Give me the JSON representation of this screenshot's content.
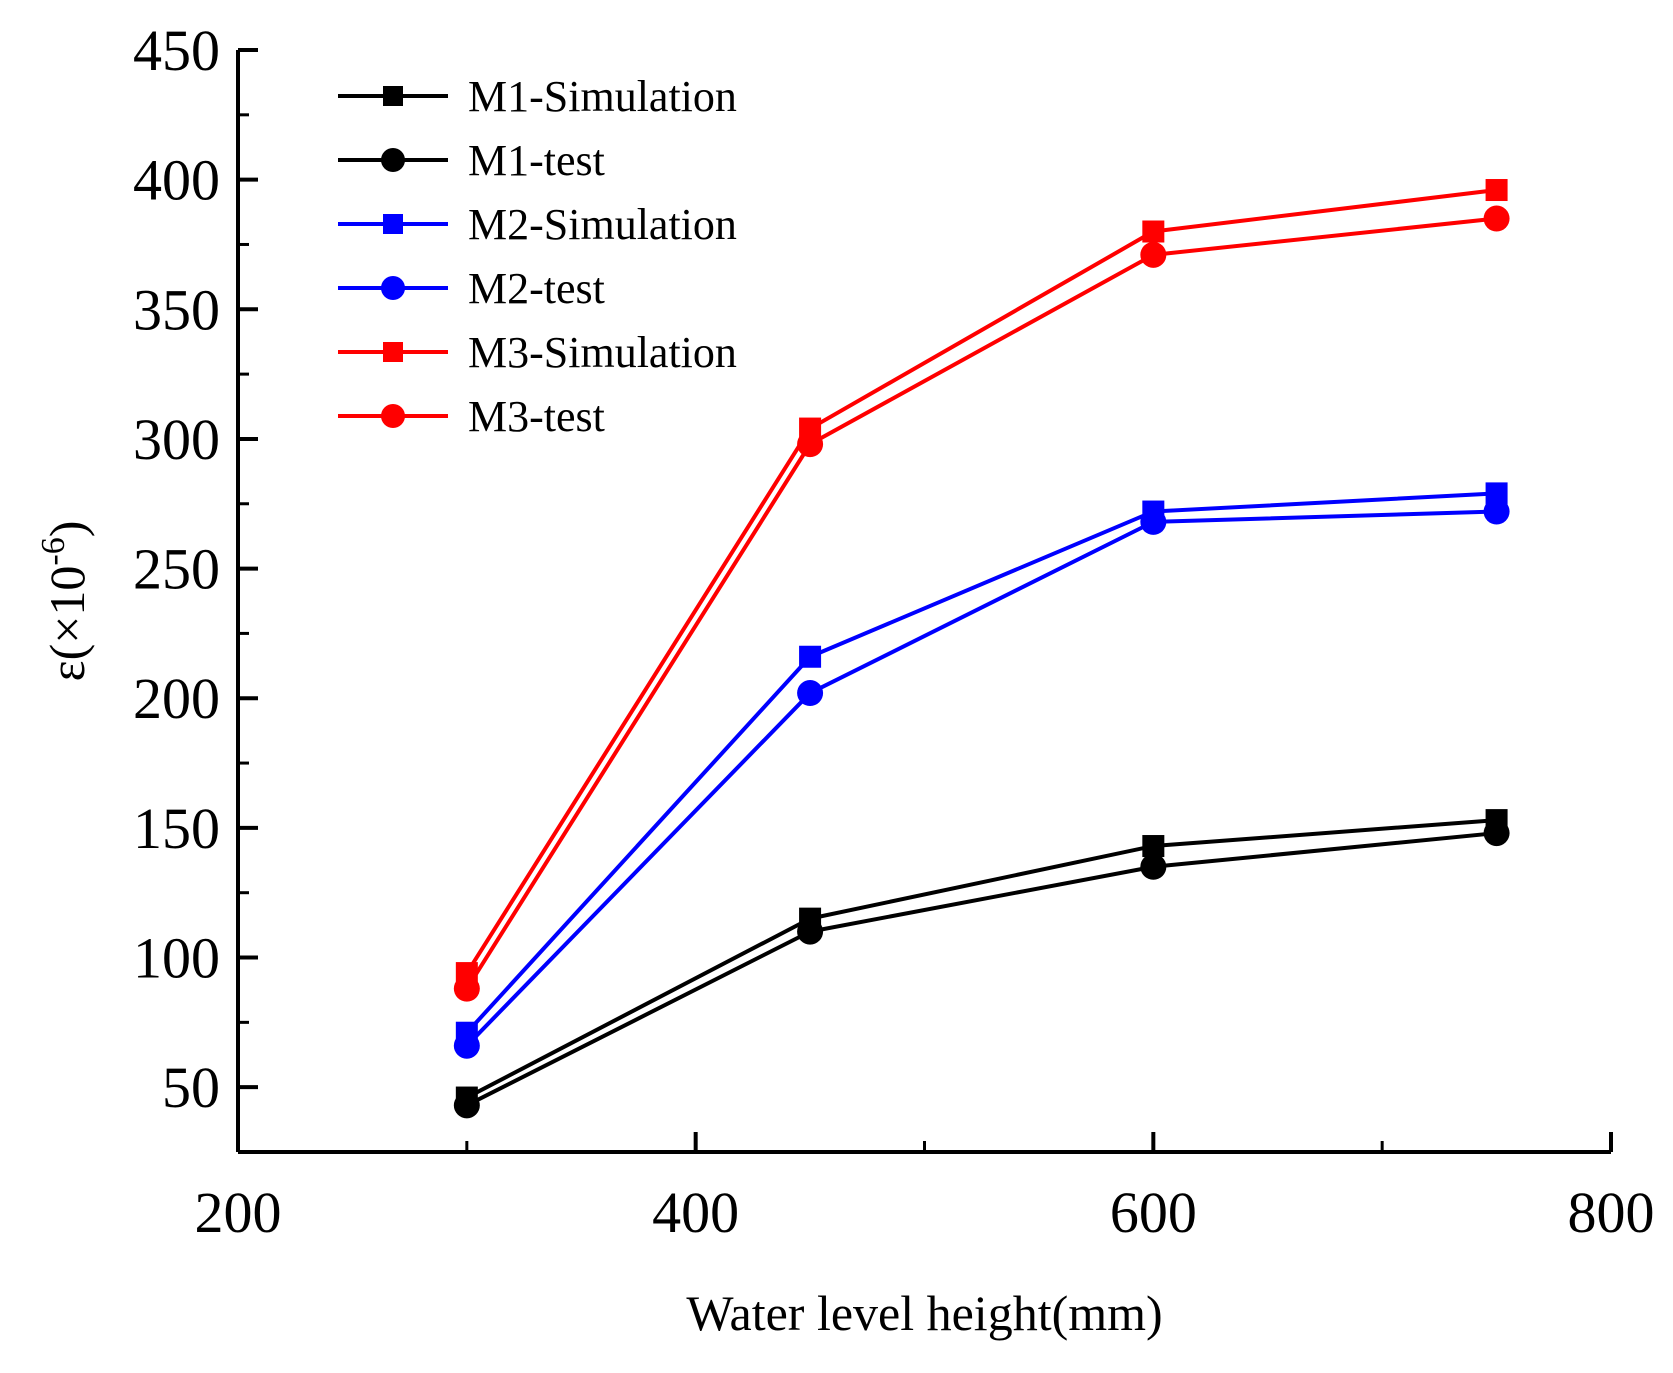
{
  "chart_data": {
    "type": "line",
    "title": "",
    "xlabel": "Water level height(mm)",
    "ylabel": "ε(×10",
    "ylabel_superscript": "-6",
    "ylabel_close": ")",
    "xlim": [
      200,
      800
    ],
    "ylim": [
      25,
      450
    ],
    "x_ticks": [
      200,
      400,
      600,
      800
    ],
    "x_tick_labels": [
      "200",
      "400",
      "600",
      "800"
    ],
    "x_minor_ticks": [
      300,
      500,
      700
    ],
    "y_ticks": [
      50,
      100,
      150,
      200,
      250,
      300,
      350,
      400,
      450
    ],
    "y_tick_labels": [
      "50",
      "100",
      "150",
      "200",
      "250",
      "300",
      "350",
      "400",
      "450"
    ],
    "y_minor_ticks": [
      75,
      125,
      175,
      225,
      275,
      325,
      375,
      425
    ],
    "grid": false,
    "legend_position": "top-left",
    "x": [
      300,
      450,
      600,
      750
    ],
    "series": [
      {
        "name": "M1-Simulation",
        "marker": "square",
        "color": "#000000",
        "values": [
          46,
          115,
          143,
          153
        ]
      },
      {
        "name": "M1-test",
        "marker": "circle",
        "color": "#000000",
        "values": [
          43,
          110,
          135,
          148
        ]
      },
      {
        "name": "M2-Simulation",
        "marker": "square",
        "color": "#0000ff",
        "values": [
          71,
          216,
          272,
          279
        ]
      },
      {
        "name": "M2-test",
        "marker": "circle",
        "color": "#0000ff",
        "values": [
          66,
          202,
          268,
          272
        ]
      },
      {
        "name": "M3-Simulation",
        "marker": "square",
        "color": "#ff0000",
        "values": [
          94,
          304,
          380,
          396
        ]
      },
      {
        "name": "M3-test",
        "marker": "circle",
        "color": "#ff0000",
        "values": [
          88,
          298,
          371,
          385
        ]
      }
    ]
  }
}
